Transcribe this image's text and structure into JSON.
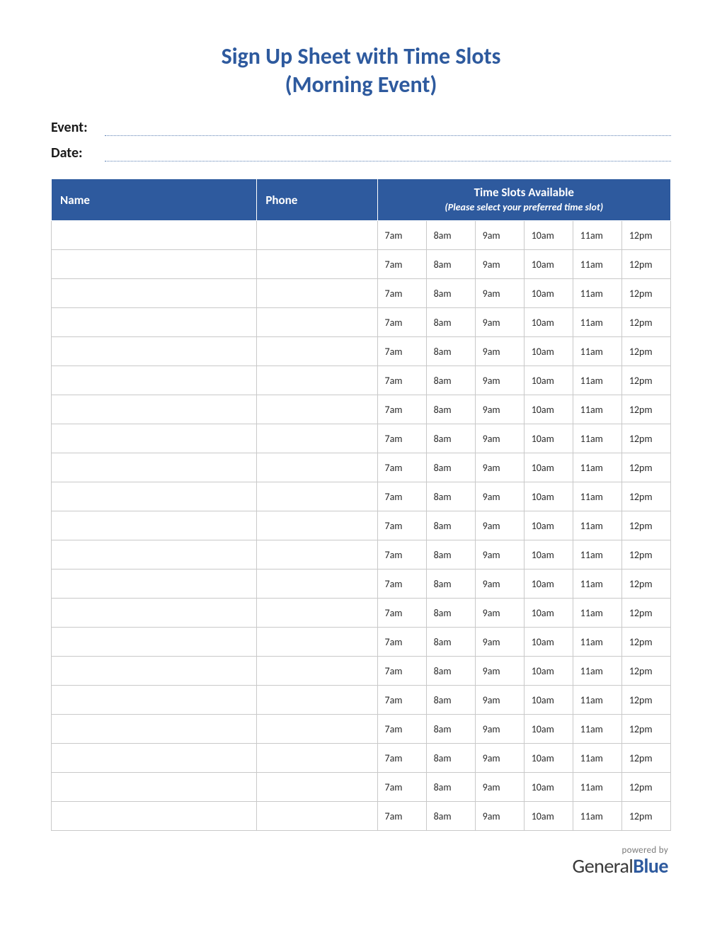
{
  "title_line1": "Sign Up Sheet with Time Slots",
  "title_line2": "(Morning Event)",
  "fields": {
    "event_label": "Event:",
    "date_label": "Date:"
  },
  "table": {
    "header_name": "Name",
    "header_phone": "Phone",
    "header_slots_title": "Time Slots Available",
    "header_slots_sub": "(Please select your preferred time slot)",
    "time_slots": [
      "7am",
      "8am",
      "9am",
      "10am",
      "11am",
      "12pm"
    ],
    "row_count": 21,
    "colors": {
      "header_bg": "#2e5a9e",
      "header_text": "#ffffff",
      "border": "#c9c9c9",
      "body_text": "#2a2a2a"
    }
  },
  "footer": {
    "powered_by": "powered by",
    "brand_part1": "General",
    "brand_part2": "Blue"
  },
  "colors": {
    "title": "#2e5a9e",
    "field_line": "#5b7fb3",
    "background": "#ffffff"
  }
}
